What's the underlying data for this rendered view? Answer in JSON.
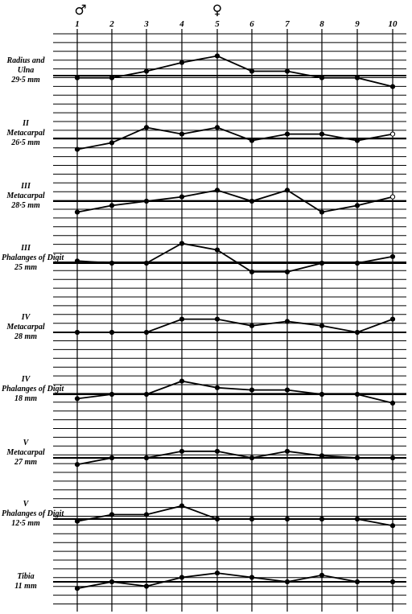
{
  "chart_data": {
    "type": "line",
    "x": [
      "1",
      "2",
      "3",
      "4",
      "5",
      "6",
      "7",
      "8",
      "9",
      "10"
    ],
    "column_symbols": [
      {
        "column": "1",
        "symbol": "♂"
      },
      {
        "column": "5",
        "symbol": "♀"
      }
    ],
    "panels": [
      {
        "lines": [
          "Radius and",
          "Ulna",
          "29·5 mm"
        ],
        "baseline_row": 0,
        "offsets": [
          -0.25,
          -0.25,
          0.5,
          1.5,
          2.25,
          0.5,
          0.5,
          -0.25,
          -0.25,
          -1.25
        ]
      },
      {
        "lines": [
          "II",
          "Metacarpal",
          "26·5 mm"
        ],
        "baseline_row": 0,
        "offsets": [
          -1.25,
          -0.5,
          1.25,
          0.5,
          1.25,
          -0.25,
          0.5,
          0.5,
          -0.25,
          0.5
        ]
      },
      {
        "lines": [
          "III",
          "Metacarpal",
          "28·5 mm"
        ],
        "baseline_row": 0,
        "offsets": [
          -1.25,
          -0.5,
          0,
          0.5,
          1.25,
          0,
          1.25,
          -1.25,
          -0.5,
          0.5
        ]
      },
      {
        "lines": [
          "III",
          "Phalanges of Digit",
          "25 mm"
        ],
        "baseline_row": 0,
        "offsets": [
          0.25,
          0,
          0,
          2.25,
          1.5,
          -1.0,
          -1.0,
          0,
          0,
          0.75
        ]
      },
      {
        "lines": [
          "IV",
          "Metacarpal",
          "28 mm"
        ],
        "baseline_row": 0,
        "offsets": [
          0,
          0,
          0,
          1.5,
          1.5,
          0.75,
          1.25,
          0.75,
          0,
          1.5
        ]
      },
      {
        "lines": [
          "IV",
          "Phalanges of Digit",
          "18 mm"
        ],
        "baseline_row": 0,
        "offsets": [
          -0.5,
          0,
          0,
          1.5,
          0.75,
          0.5,
          0.5,
          0,
          0,
          -1.0
        ]
      },
      {
        "lines": [
          "V",
          "Metacarpal",
          "27 mm"
        ],
        "baseline_row": 0,
        "offsets": [
          -0.75,
          0,
          0,
          0.75,
          0.75,
          0,
          0.75,
          0.25,
          0,
          0
        ]
      },
      {
        "lines": [
          "V",
          "Phalanges of Digit",
          "12·5 mm"
        ],
        "baseline_row": 0,
        "offsets": [
          -0.25,
          0.5,
          0.5,
          1.5,
          0,
          0,
          0,
          0,
          0,
          -0.75
        ]
      },
      {
        "lines": [
          "Tibia",
          "11 mm"
        ],
        "baseline_row": 0,
        "offsets": [
          -0.75,
          0,
          -0.5,
          0.5,
          1.0,
          0.5,
          0,
          0.75,
          0,
          0
        ]
      }
    ],
    "grid": true,
    "legend": "none"
  }
}
